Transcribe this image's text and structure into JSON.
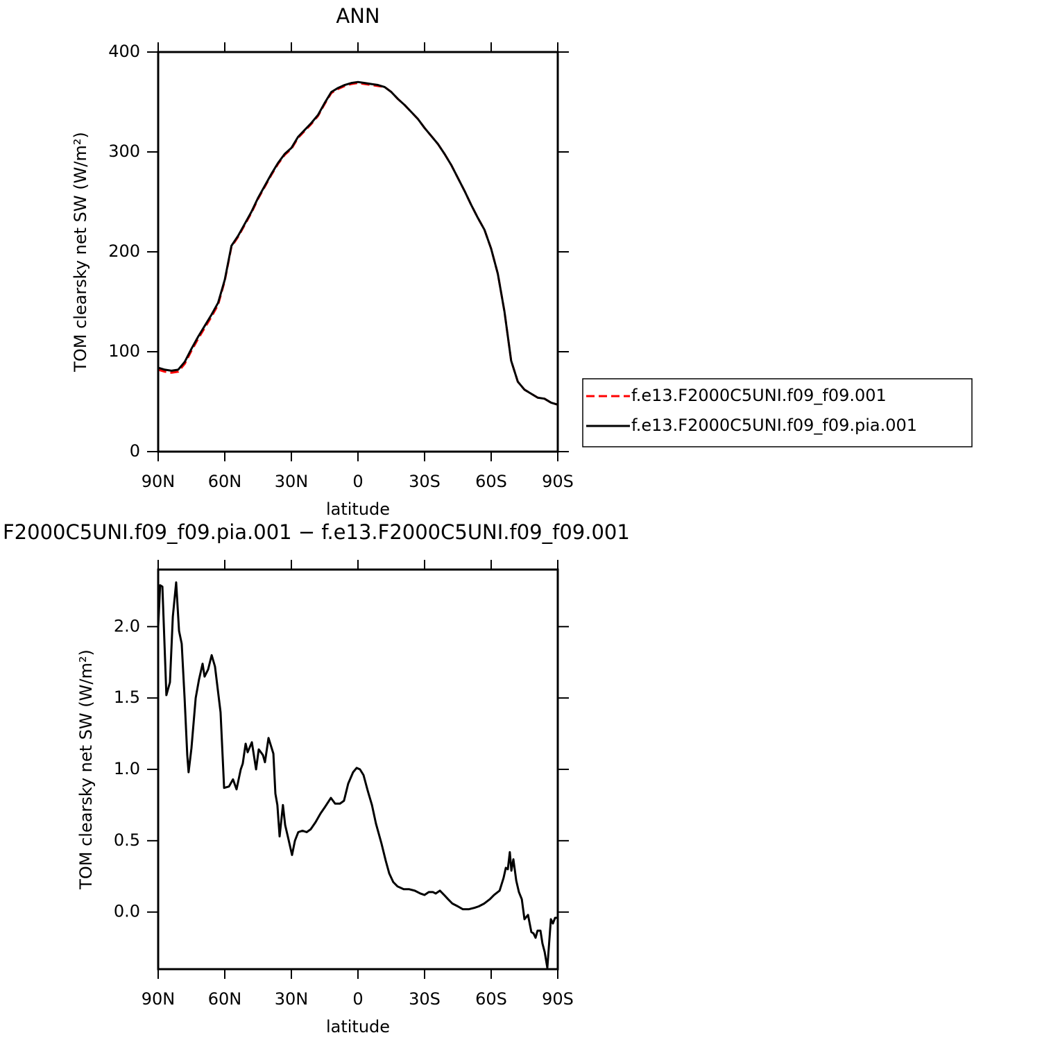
{
  "chart_data": [
    {
      "type": "line",
      "title": "ANN",
      "xlabel": "latitude",
      "ylabel": "TOM clearsky net SW (W/m²)",
      "x": [
        90,
        87,
        84,
        81,
        78,
        75,
        72,
        69,
        66,
        63,
        60,
        57,
        54,
        51,
        48,
        45,
        42,
        39,
        36,
        33,
        30,
        27,
        24,
        21,
        18,
        15,
        12,
        9,
        6,
        3,
        0,
        -3,
        -6,
        -9,
        -12,
        -15,
        -18,
        -21,
        -24,
        -27,
        -30,
        -33,
        -36,
        -39,
        -42,
        -45,
        -48,
        -51,
        -54,
        -57,
        -60,
        -63,
        -66,
        -69,
        -72,
        -75,
        -78,
        -81,
        -84,
        -87,
        -90
      ],
      "series": [
        {
          "name": "f.e13.F2000C5UNI.f09_f09.001",
          "color": "#ff0000",
          "dashed": true,
          "values": [
            82,
            80,
            79,
            80,
            88,
            101,
            113,
            124,
            135,
            147,
            171,
            205,
            215,
            227,
            239,
            253,
            265,
            277,
            288,
            297,
            303,
            314,
            321,
            328,
            336,
            348,
            359,
            363,
            366,
            368,
            369,
            368,
            367,
            366,
            365,
            360,
            353,
            347,
            340,
            333,
            324,
            316,
            308,
            298,
            287,
            274,
            261,
            247,
            234,
            222,
            203,
            178,
            140,
            91,
            70,
            62,
            58,
            54,
            53,
            49,
            47
          ]
        },
        {
          "name": "f.e13.F2000C5UNI.f09_f09.pia.001",
          "color": "#000000",
          "dashed": false,
          "values": [
            84,
            82,
            81,
            82,
            90,
            103,
            115,
            126,
            137,
            149,
            172,
            206,
            216,
            228,
            240,
            254,
            266,
            278,
            289,
            298,
            304,
            315,
            322,
            329,
            337,
            349,
            360,
            364,
            367,
            369,
            370,
            369,
            368,
            367,
            365,
            360,
            353,
            347,
            340,
            333,
            324,
            316,
            308,
            298,
            287,
            274,
            261,
            247,
            234,
            222,
            203,
            178,
            140,
            91,
            70,
            62,
            58,
            54,
            53,
            49,
            47
          ]
        }
      ],
      "xlim": [
        90,
        -90
      ],
      "xticks": [
        {
          "value": 90,
          "label": "90N"
        },
        {
          "value": 60,
          "label": "60N"
        },
        {
          "value": 30,
          "label": "30N"
        },
        0,
        {
          "value": -30,
          "label": "30S"
        },
        {
          "value": -60,
          "label": "60S"
        },
        {
          "value": -90,
          "label": "90S"
        }
      ],
      "ylim": [
        0,
        400
      ],
      "yticks": [
        0,
        100,
        200,
        300,
        400
      ],
      "legend": "right"
    },
    {
      "type": "line",
      "title": "F2000C5UNI.f09_f09.pia.001 − f.e13.F2000C5UNI.f09_f09.001",
      "xlabel": "latitude",
      "ylabel": "TOM clearsky net SW (W/m²)",
      "color": "#000000",
      "x": [
        90,
        89.1,
        88.1,
        86.3,
        84.7,
        83.4,
        81.9,
        80.6,
        79.4,
        78.1,
        76.9,
        76.3,
        75.0,
        73.1,
        71.6,
        70.0,
        69.1,
        67.5,
        65.9,
        64.4,
        61.9,
        60.3,
        58.1,
        56.3,
        54.7,
        52.8,
        51.9,
        50.6,
        49.7,
        47.8,
        45.9,
        44.7,
        42.8,
        41.9,
        40.3,
        38.1,
        37.2,
        36.3,
        35.3,
        33.8,
        32.8,
        31.6,
        29.7,
        28.4,
        26.9,
        25.0,
        23.1,
        21.3,
        19.1,
        16.9,
        14.7,
        12.2,
        10.3,
        8.1,
        6.3,
        4.4,
        2.2,
        0.6,
        -0.9,
        -2.5,
        -4.4,
        -6.3,
        -8.1,
        -10.6,
        -12.5,
        -14.1,
        -15.9,
        -17.8,
        -20.6,
        -23.1,
        -25.6,
        -28.1,
        -30.0,
        -31.9,
        -33.8,
        -35.0,
        -36.9,
        -38.8,
        -40.6,
        -42.5,
        -45.0,
        -47.2,
        -50.0,
        -52.5,
        -54.4,
        -56.9,
        -59.4,
        -61.3,
        -63.8,
        -65.6,
        -66.6,
        -67.5,
        -68.4,
        -69.1,
        -70.0,
        -71.3,
        -72.5,
        -73.8,
        -75.0,
        -76.6,
        -78.1,
        -79.1,
        -80.0,
        -80.9,
        -82.2,
        -83.1,
        -84.1,
        -85.3,
        -86.9,
        -87.8,
        -88.8,
        -90
      ],
      "values": [
        2.0,
        2.29,
        2.28,
        1.52,
        1.61,
        2.07,
        2.31,
        1.97,
        1.88,
        1.5,
        1.1,
        0.98,
        1.15,
        1.5,
        1.63,
        1.74,
        1.65,
        1.7,
        1.8,
        1.72,
        1.4,
        0.87,
        0.88,
        0.93,
        0.86,
        1.0,
        1.04,
        1.18,
        1.12,
        1.19,
        1.0,
        1.14,
        1.1,
        1.05,
        1.22,
        1.11,
        0.83,
        0.75,
        0.53,
        0.75,
        0.61,
        0.53,
        0.4,
        0.5,
        0.56,
        0.57,
        0.56,
        0.58,
        0.63,
        0.69,
        0.74,
        0.8,
        0.76,
        0.76,
        0.78,
        0.9,
        0.98,
        1.01,
        1.0,
        0.96,
        0.85,
        0.75,
        0.62,
        0.48,
        0.36,
        0.27,
        0.21,
        0.18,
        0.16,
        0.16,
        0.15,
        0.13,
        0.12,
        0.14,
        0.14,
        0.13,
        0.15,
        0.12,
        0.09,
        0.06,
        0.04,
        0.02,
        0.02,
        0.03,
        0.04,
        0.06,
        0.09,
        0.12,
        0.15,
        0.24,
        0.31,
        0.3,
        0.42,
        0.29,
        0.37,
        0.22,
        0.14,
        0.09,
        -0.05,
        -0.02,
        -0.14,
        -0.15,
        -0.18,
        -0.13,
        -0.13,
        -0.22,
        -0.28,
        -0.39,
        -0.05,
        -0.08,
        -0.04,
        -0.04
      ],
      "xlim": [
        90,
        -90
      ],
      "xticks": [
        {
          "value": 90,
          "label": "90N"
        },
        {
          "value": 60,
          "label": "60N"
        },
        {
          "value": 30,
          "label": "30N"
        },
        0,
        {
          "value": -30,
          "label": "30S"
        },
        {
          "value": -60,
          "label": "60S"
        },
        {
          "value": -90,
          "label": "90S"
        }
      ],
      "ylim": [
        -0.4,
        2.4
      ],
      "yticks": [
        {
          "value": 0,
          "label": "0.0"
        },
        0.5,
        {
          "value": 1,
          "label": "1.0"
        },
        1.5,
        {
          "value": 2,
          "label": "2.0"
        }
      ]
    }
  ]
}
